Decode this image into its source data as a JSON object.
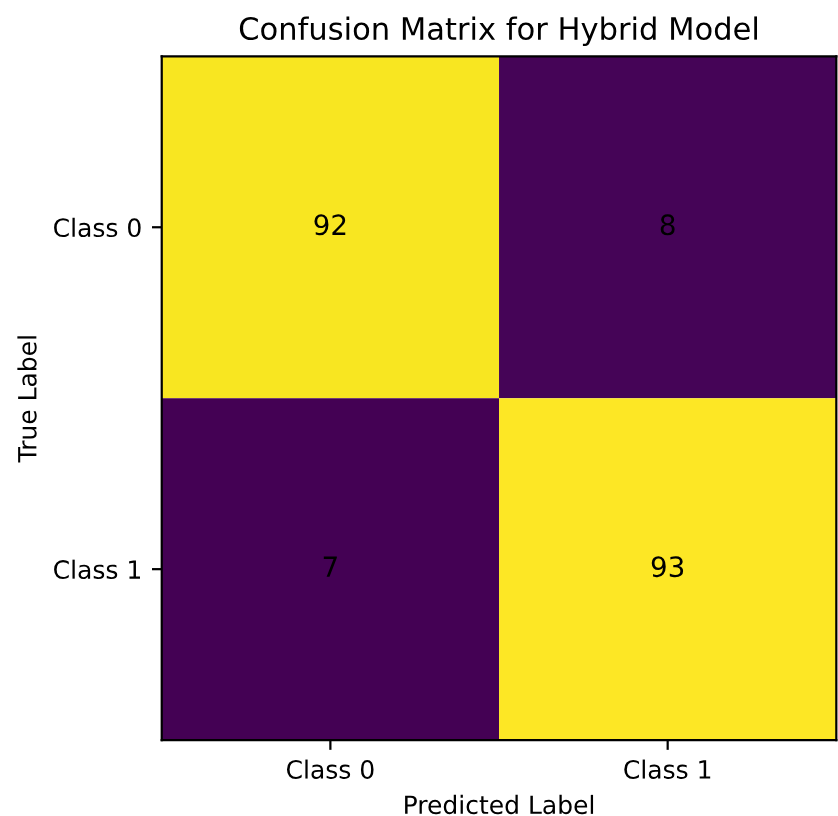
{
  "chart_data": {
    "type": "heatmap",
    "title": "Confusion Matrix for Hybrid Model",
    "xlabel": "Predicted Label",
    "ylabel": "True Label",
    "categories": [
      "Class 0",
      "Class 1"
    ],
    "y_categories": [
      "Class 0",
      "Class 1"
    ],
    "cells": [
      [
        92,
        8
      ],
      [
        7,
        93
      ]
    ],
    "data_labels": true
  }
}
